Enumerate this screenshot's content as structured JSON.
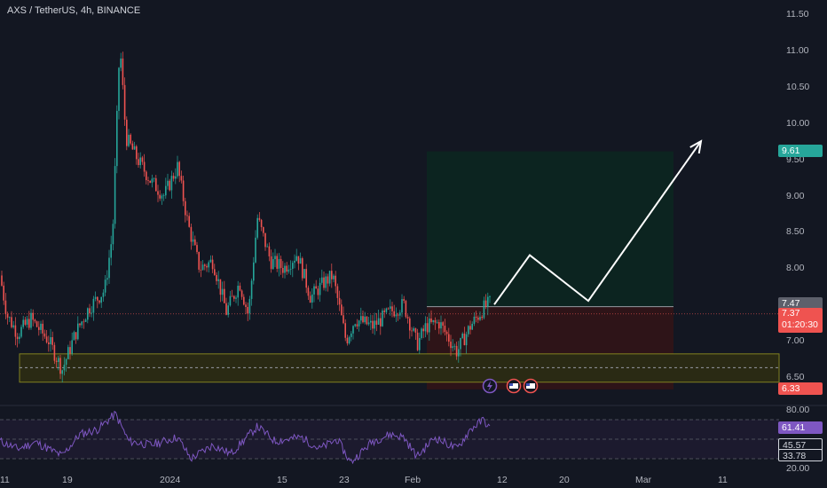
{
  "header": {
    "title": "AXS / TetherUS, 4h, BINANCE"
  },
  "colors": {
    "background": "#131722",
    "up": "#26a69a",
    "down": "#ef5350",
    "rsi_line": "#7e57c2",
    "target_zone": "#0c2420",
    "stop_zone": "#2e1418",
    "support_zone": "#2a2a14",
    "support_border": "#808020",
    "arrow": "#ffffff"
  },
  "axis": {
    "price_ticks": [
      "11.50",
      "11.00",
      "10.50",
      "10.00",
      "9.50",
      "9.00",
      "8.50",
      "8.00",
      "7.50",
      "7.00",
      "6.50"
    ],
    "rsi_ticks": [
      "80.00",
      "20.00"
    ],
    "time_ticks": [
      "11",
      "19",
      "2024",
      "15",
      "23",
      "Feb",
      "12",
      "20",
      "Mar",
      "11"
    ]
  },
  "badges": {
    "target": "9.61",
    "entry": "7.47",
    "last_price": "7.37",
    "countdown": "01:20:30",
    "stop": "6.33",
    "rsi_value": "61.41",
    "rsi_mid": "45.57",
    "rsi_low": "33.78"
  },
  "chart_data": {
    "type": "candlestick",
    "title": "AXS / TetherUS, 4h, BINANCE",
    "ylim": [
      6.3,
      11.6
    ],
    "x_ticks": [
      "11",
      "19",
      "2024",
      "15",
      "23",
      "Feb",
      "12",
      "20",
      "Mar",
      "11"
    ],
    "price_path": [
      {
        "x": 0,
        "y": 7.9
      },
      {
        "x": 8,
        "y": 7.35
      },
      {
        "x": 20,
        "y": 7.1
      },
      {
        "x": 35,
        "y": 7.3
      },
      {
        "x": 55,
        "y": 7.0
      },
      {
        "x": 70,
        "y": 6.6
      },
      {
        "x": 85,
        "y": 7.1
      },
      {
        "x": 100,
        "y": 7.45
      },
      {
        "x": 118,
        "y": 7.7
      },
      {
        "x": 127,
        "y": 8.5
      },
      {
        "x": 135,
        "y": 11.1
      },
      {
        "x": 142,
        "y": 9.8
      },
      {
        "x": 155,
        "y": 9.5
      },
      {
        "x": 170,
        "y": 9.2
      },
      {
        "x": 185,
        "y": 9.0
      },
      {
        "x": 200,
        "y": 9.4
      },
      {
        "x": 212,
        "y": 8.6
      },
      {
        "x": 225,
        "y": 8.0
      },
      {
        "x": 240,
        "y": 8.1
      },
      {
        "x": 255,
        "y": 7.4
      },
      {
        "x": 270,
        "y": 7.8
      },
      {
        "x": 280,
        "y": 7.35
      },
      {
        "x": 290,
        "y": 8.7
      },
      {
        "x": 305,
        "y": 8.1
      },
      {
        "x": 320,
        "y": 8.0
      },
      {
        "x": 335,
        "y": 8.2
      },
      {
        "x": 350,
        "y": 7.6
      },
      {
        "x": 365,
        "y": 7.8
      },
      {
        "x": 375,
        "y": 7.9
      },
      {
        "x": 390,
        "y": 7.0
      },
      {
        "x": 400,
        "y": 7.3
      },
      {
        "x": 420,
        "y": 7.2
      },
      {
        "x": 440,
        "y": 7.4
      },
      {
        "x": 455,
        "y": 7.5
      },
      {
        "x": 470,
        "y": 6.95
      },
      {
        "x": 480,
        "y": 7.2
      },
      {
        "x": 495,
        "y": 7.25
      },
      {
        "x": 515,
        "y": 6.85
      },
      {
        "x": 530,
        "y": 7.2
      },
      {
        "x": 545,
        "y": 7.45
      },
      {
        "x": 552,
        "y": 7.52
      }
    ],
    "projection": [
      {
        "x": 557,
        "y": 7.5
      },
      {
        "x": 597,
        "y": 8.18
      },
      {
        "x": 663,
        "y": 7.55
      },
      {
        "x": 790,
        "y": 9.75
      }
    ],
    "long_position": {
      "entry": 7.47,
      "target": 9.61,
      "stop": 6.33
    },
    "support_zone": [
      6.43,
      6.82
    ],
    "support_mid": 6.63,
    "last_price": 7.37,
    "rsi": {
      "levels": [
        70,
        50,
        30
      ],
      "ylim": [
        20,
        80
      ],
      "current": 61.41,
      "path": [
        {
          "x": 0,
          "y": 48
        },
        {
          "x": 20,
          "y": 40
        },
        {
          "x": 40,
          "y": 47
        },
        {
          "x": 70,
          "y": 33
        },
        {
          "x": 90,
          "y": 55
        },
        {
          "x": 110,
          "y": 60
        },
        {
          "x": 130,
          "y": 76
        },
        {
          "x": 145,
          "y": 48
        },
        {
          "x": 170,
          "y": 44
        },
        {
          "x": 200,
          "y": 52
        },
        {
          "x": 215,
          "y": 30
        },
        {
          "x": 240,
          "y": 44
        },
        {
          "x": 260,
          "y": 35
        },
        {
          "x": 290,
          "y": 63
        },
        {
          "x": 310,
          "y": 48
        },
        {
          "x": 340,
          "y": 52
        },
        {
          "x": 360,
          "y": 40
        },
        {
          "x": 380,
          "y": 50
        },
        {
          "x": 395,
          "y": 26
        },
        {
          "x": 420,
          "y": 48
        },
        {
          "x": 440,
          "y": 55
        },
        {
          "x": 455,
          "y": 52
        },
        {
          "x": 470,
          "y": 32
        },
        {
          "x": 490,
          "y": 52
        },
        {
          "x": 515,
          "y": 40
        },
        {
          "x": 530,
          "y": 60
        },
        {
          "x": 545,
          "y": 70
        },
        {
          "x": 552,
          "y": 61
        }
      ]
    }
  }
}
